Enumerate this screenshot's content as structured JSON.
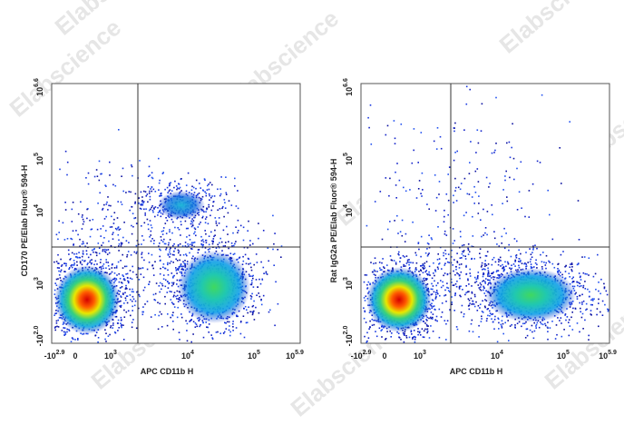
{
  "watermark": "Elabscience",
  "panels": [
    {
      "x_label": "APC CD11b H",
      "y_label": "CD170 PE/Elab Fluor® 594-H",
      "x_ticks": [
        {
          "base": "-10",
          "exp": "2.9"
        },
        {
          "base": "0",
          "exp": ""
        },
        {
          "base": "10",
          "exp": "3"
        },
        {
          "base": "10",
          "exp": "4"
        },
        {
          "base": "10",
          "exp": "5"
        },
        {
          "base": "10",
          "exp": "5.9"
        }
      ],
      "y_ticks": [
        {
          "base": "-10",
          "exp": "2.0"
        },
        {
          "base": "10",
          "exp": "3"
        },
        {
          "base": "10",
          "exp": "4"
        },
        {
          "base": "10",
          "exp": "5"
        },
        {
          "base": "10",
          "exp": "6.6"
        }
      ]
    },
    {
      "x_label": "APC CD11b H",
      "y_label": "Rat IgG2a PE/Elab Fluor® 594-H",
      "x_ticks": [
        {
          "base": "-10",
          "exp": "2.9"
        },
        {
          "base": "0",
          "exp": ""
        },
        {
          "base": "10",
          "exp": "3"
        },
        {
          "base": "10",
          "exp": "4"
        },
        {
          "base": "10",
          "exp": "5"
        },
        {
          "base": "10",
          "exp": "5.9"
        }
      ],
      "y_ticks": [
        {
          "base": "-10",
          "exp": "2.0"
        },
        {
          "base": "10",
          "exp": "3"
        },
        {
          "base": "10",
          "exp": "4"
        },
        {
          "base": "10",
          "exp": "5"
        },
        {
          "base": "10",
          "exp": "6.6"
        }
      ]
    }
  ]
}
